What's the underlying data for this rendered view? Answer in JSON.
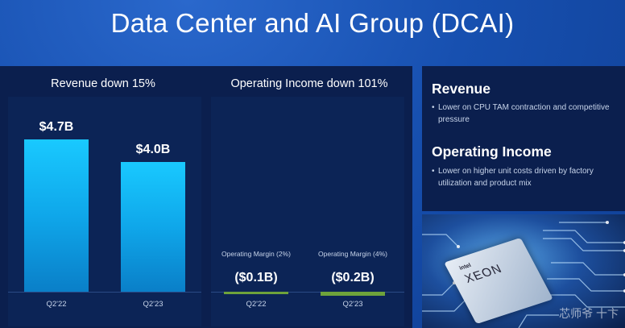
{
  "title": "Data Center and AI Group (DCAI)",
  "chart_data": [
    {
      "type": "bar",
      "title": "Revenue down 15%",
      "categories": [
        "Q2'22",
        "Q2'23"
      ],
      "values": [
        4.7,
        4.0
      ],
      "value_labels": [
        "$4.7B",
        "$4.0B"
      ],
      "unit": "$B",
      "ylim": [
        0,
        5.1
      ]
    },
    {
      "type": "bar",
      "title": "Operating Income down 101%",
      "categories": [
        "Q2'22",
        "Q2'23"
      ],
      "values": [
        -0.1,
        -0.2
      ],
      "value_labels": [
        "($0.1B)",
        "($0.2B)"
      ],
      "margin_labels": [
        "Operating Margin (2%)",
        "Operating Margin (4%)"
      ],
      "unit": "$B"
    }
  ],
  "sidebar": {
    "sections": [
      {
        "heading": "Revenue",
        "bullet": "Lower on CPU TAM contraction and competitive pressure"
      },
      {
        "heading": "Operating Income",
        "bullet": "Lower on higher unit costs driven by factory utilization and product mix"
      }
    ],
    "bullet_char": "•"
  },
  "photo": {
    "chip_brand": "intel",
    "chip_name": "XEON",
    "watermark": "芯师爷 十卞"
  },
  "colors": {
    "background": "#1a55b8",
    "panel": "#0b1f4e",
    "bar": "#19c9ff",
    "negative_bar": "#6ea33b"
  }
}
